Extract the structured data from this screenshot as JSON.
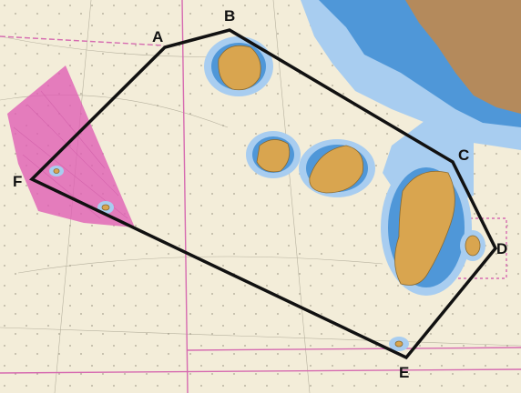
{
  "map": {
    "type": "nautical-chart",
    "colors": {
      "sea": "#f3edd9",
      "shallow_water": "#4f97d8",
      "shallow_water_light": "#a8cdf0",
      "land": "#d9a54f",
      "mainland": "#b48a5c",
      "restricted_area": "#e05fb4",
      "boundary_line": "#111111",
      "chart_grid": "#d66ab0"
    }
  },
  "route": {
    "vertices": [
      {
        "id": "A",
        "label": "A"
      },
      {
        "id": "B",
        "label": "B"
      },
      {
        "id": "C",
        "label": "C"
      },
      {
        "id": "D",
        "label": "D"
      },
      {
        "id": "E",
        "label": "E"
      },
      {
        "id": "F",
        "label": "F"
      }
    ]
  }
}
